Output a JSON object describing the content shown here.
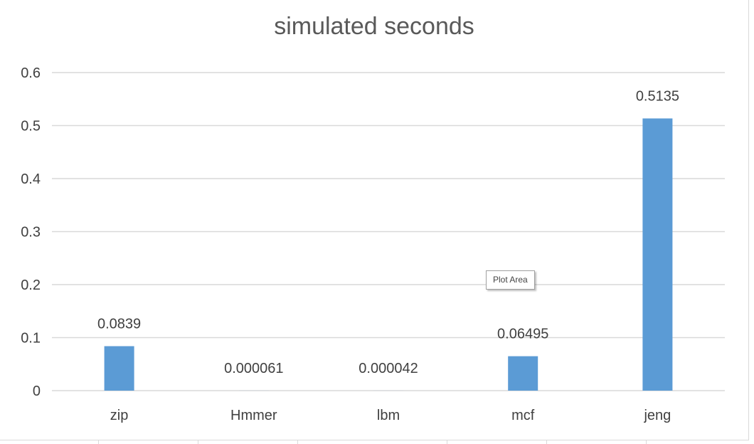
{
  "chart_data": {
    "type": "bar",
    "title": "simulated seconds",
    "xlabel": "",
    "ylabel": "",
    "categories": [
      "zip",
      "Hmmer",
      "lbm",
      "mcf",
      "jeng"
    ],
    "values": [
      0.0839,
      6.1e-05,
      4.2e-05,
      0.06495,
      0.5135
    ],
    "data_labels": [
      "0.0839",
      "0.000061",
      "0.000042",
      "0.06495",
      "0.5135"
    ],
    "ylim": [
      0,
      0.6
    ],
    "yticks": [
      0,
      0.1,
      0.2,
      0.3,
      0.4,
      0.5,
      0.6
    ],
    "ytick_labels": [
      "0",
      "0.1",
      "0.2",
      "0.3",
      "0.4",
      "0.5",
      "0.6"
    ],
    "grid": true,
    "legend": "none",
    "bar_color": "#5b9bd5",
    "gridline_color": "#d9d9d9",
    "text_color": "#404040"
  },
  "tooltip": {
    "text": "Plot Area"
  }
}
